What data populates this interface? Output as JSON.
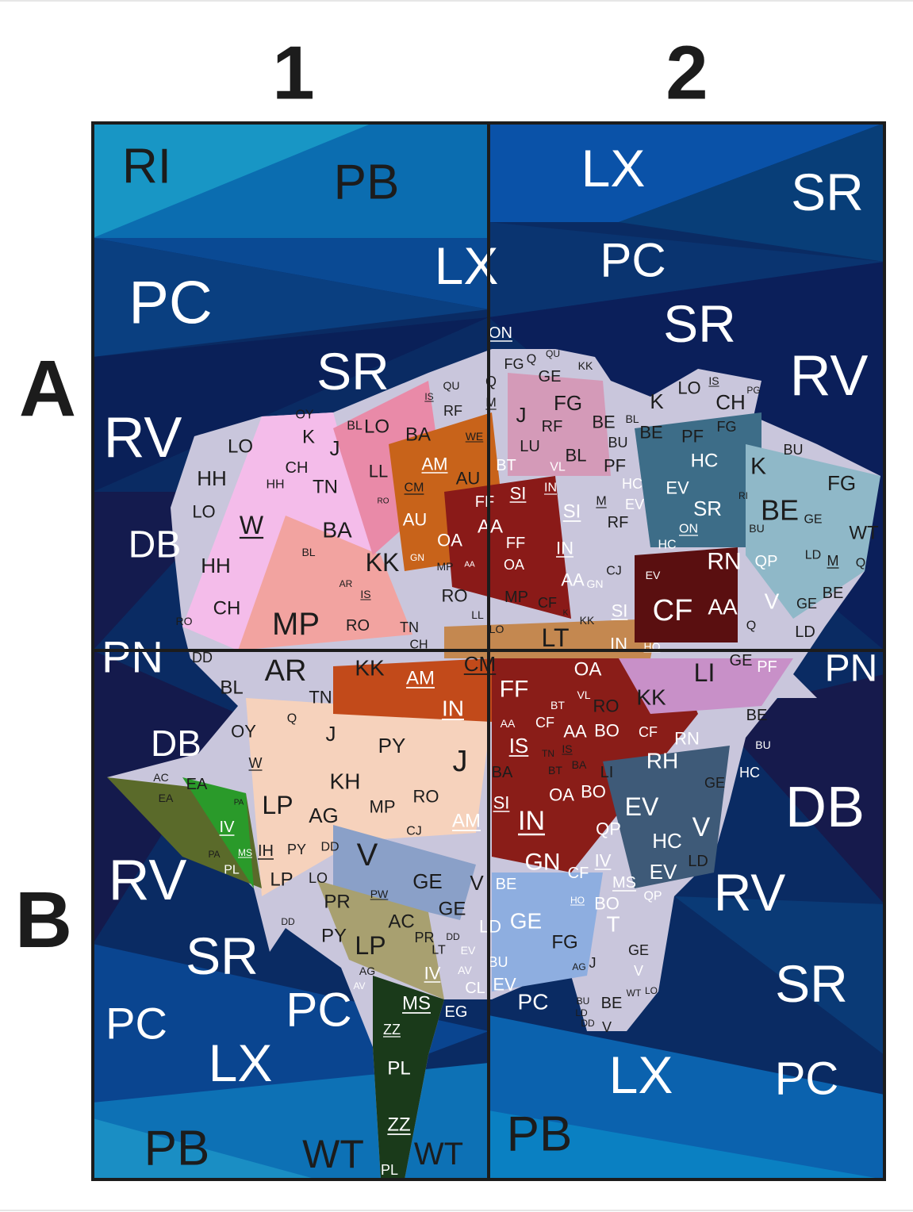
{
  "grid": {
    "columns": [
      "1",
      "2"
    ],
    "rows": [
      "A",
      "B"
    ]
  },
  "labels": [
    "RI",
    "PB",
    "LX",
    "PC",
    "SR",
    "RV",
    "DB",
    "PN",
    "LX",
    "SR",
    "PC",
    "SR",
    "RV",
    "PN",
    "DB",
    "RV",
    "SR",
    "PC",
    "LX",
    "PB",
    "WT",
    "WT",
    "PB",
    "LX",
    "PC",
    "PC",
    "SR",
    "RV",
    "DB",
    "ON",
    "LO",
    "HH",
    "HH",
    "CH",
    "K",
    "OY",
    "BL",
    "LO",
    "J",
    "TN",
    "LO",
    "W",
    "BA",
    "HH",
    "BL",
    "CH",
    "MP",
    "RO",
    "TN",
    "AR",
    "IS",
    "KK",
    "LL",
    "BA",
    "QU",
    "IS",
    "RF",
    "WE",
    "AM",
    "AU",
    "CM",
    "AU",
    "OA",
    "RO",
    "GN",
    "MP",
    "AA",
    "RO",
    "LL",
    "RO",
    "CH",
    "FG",
    "Q",
    "QU",
    "KK",
    "GE",
    "Q",
    "M",
    "J",
    "FG",
    "RF",
    "LU",
    "BT",
    "VL",
    "BL",
    "IN",
    "SI",
    "SI",
    "FF",
    "AA",
    "FF",
    "OA",
    "IN",
    "AA",
    "GN",
    "CF",
    "MP",
    "LT",
    "SI",
    "IN",
    "LO",
    "K",
    "KK",
    "BE",
    "BU",
    "BL",
    "BE",
    "K",
    "LO",
    "IS",
    "CH",
    "PG",
    "PF",
    "FG",
    "HC",
    "PF",
    "EV",
    "HC",
    "EV",
    "M",
    "RF",
    "SR",
    "ON",
    "HC",
    "RN",
    "QP",
    "CF",
    "AA",
    "V",
    "Q",
    "K",
    "BE",
    "BU",
    "FG",
    "WT",
    "GE",
    "LD",
    "M",
    "Q",
    "BE",
    "GE",
    "LD",
    "RI",
    "BU",
    "HO",
    "CJ",
    "EV",
    "DD",
    "AR",
    "KK",
    "BL",
    "TN",
    "AM",
    "CM",
    "IN",
    "Q",
    "OY",
    "J",
    "PY",
    "J",
    "KH",
    "W",
    "EA",
    "AC",
    "EA",
    "LP",
    "AG",
    "MP",
    "RO",
    "AM",
    "CJ",
    "IV",
    "PA",
    "PA",
    "MS",
    "IH",
    "PY",
    "DD",
    "V",
    "PL",
    "LP",
    "LO",
    "GE",
    "PR",
    "PW",
    "AC",
    "PY",
    "LP",
    "PR",
    "LT",
    "DD",
    "AG",
    "IV",
    "AV",
    "AV",
    "MS",
    "EG",
    "ZZ",
    "PL",
    "ZZ",
    "PL",
    "GE",
    "V",
    "CL",
    "DD",
    "EV",
    "OA",
    "FF",
    "VL",
    "RO",
    "KK",
    "LI",
    "GE",
    "PF",
    "BT",
    "CF",
    "AA",
    "AA",
    "BO",
    "CF",
    "RN",
    "IS",
    "IS",
    "TN",
    "RH",
    "BE",
    "BU",
    "HC",
    "GE",
    "BA",
    "BT",
    "BA",
    "LI",
    "BO",
    "OA",
    "SI",
    "IN",
    "EV",
    "QP",
    "HC",
    "V",
    "GN",
    "CF",
    "IV",
    "MS",
    "EV",
    "LD",
    "BE",
    "LD",
    "GE",
    "FG",
    "BO",
    "HO",
    "T",
    "QP",
    "GE",
    "V",
    "BU",
    "EV",
    "PC",
    "BE",
    "V",
    "WT",
    "LO",
    "J",
    "AG",
    "BU",
    "LD",
    "DD"
  ]
}
